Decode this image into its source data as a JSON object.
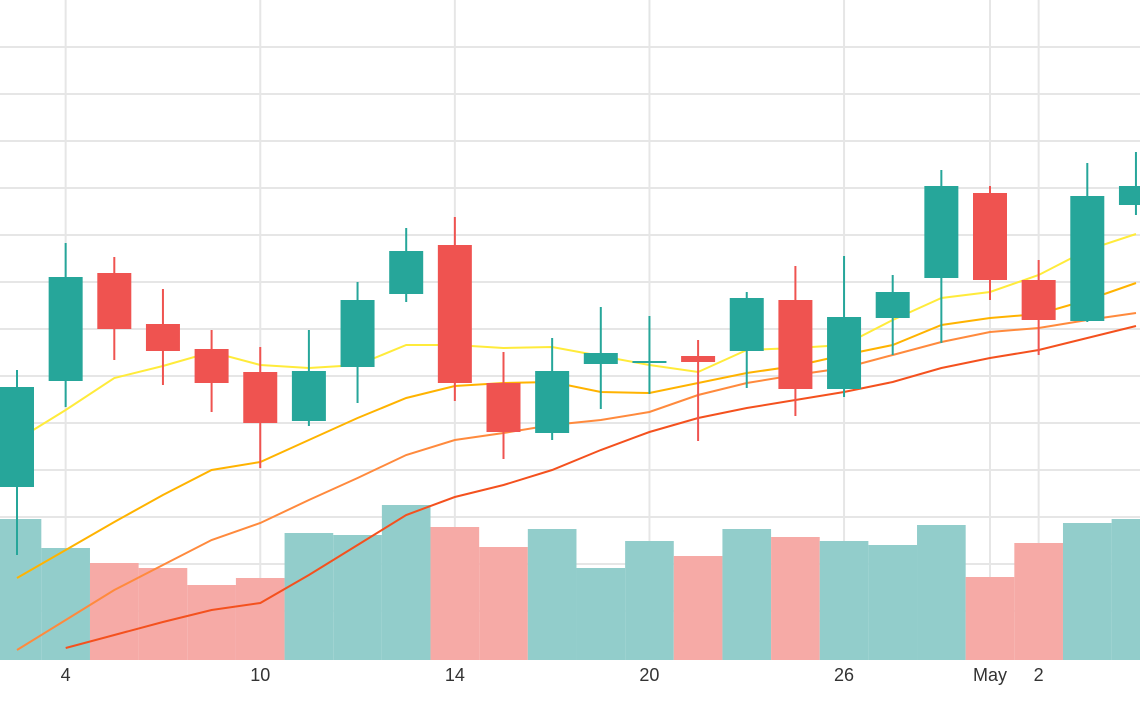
{
  "chart_data": {
    "type": "candlestick",
    "categories": [
      null,
      "4",
      null,
      null,
      null,
      "10",
      null,
      null,
      null,
      "14",
      null,
      null,
      null,
      "20",
      null,
      null,
      null,
      "26",
      null,
      null,
      "May",
      "2",
      null,
      null
    ],
    "open": [
      173,
      279,
      387,
      336,
      311,
      288,
      239,
      293,
      366,
      415,
      277,
      227,
      296,
      297,
      304,
      309,
      360,
      271,
      342,
      382,
      467,
      380,
      339,
      455
    ],
    "high": [
      290,
      417,
      403,
      371,
      330,
      313,
      330,
      378,
      432,
      443,
      308,
      322,
      353,
      344,
      320,
      368,
      394,
      404,
      385,
      490,
      474,
      400,
      497,
      508
    ],
    "low": [
      105,
      253,
      300,
      275,
      248,
      192,
      234,
      257,
      358,
      259,
      201,
      220,
      251,
      266,
      219,
      272,
      244,
      263,
      305,
      317,
      360,
      305,
      338,
      445
    ],
    "close": [
      273,
      383,
      331,
      309,
      277,
      237,
      289,
      360,
      409,
      277,
      228,
      289,
      307,
      299,
      298,
      362,
      271,
      343,
      368,
      474,
      380,
      340,
      464,
      474
    ],
    "volume": [
      141,
      112,
      97,
      92,
      75,
      82,
      127,
      125,
      155,
      133,
      113,
      131,
      92,
      119,
      104,
      131,
      123,
      119,
      115,
      135,
      83,
      117,
      137,
      141
    ],
    "up_color": "#26a69a",
    "down_color": "#ef5350",
    "volume_up_color": "#92cdcb",
    "volume_down_color": "#f6aaa6",
    "moving_averages": [
      {
        "color": "#ffeb3b",
        "values": [
          220,
          250,
          282,
          294,
          308,
          295,
          292,
          295,
          315,
          315,
          312,
          313,
          304,
          295,
          288,
          310,
          312,
          315,
          340,
          362,
          368,
          385,
          410,
          426
        ]
      },
      {
        "color": "#ffb300",
        "values": [
          82,
          110,
          138,
          165,
          190,
          198,
          220,
          242,
          262,
          274,
          277,
          278,
          268,
          267,
          277,
          287,
          294,
          305,
          315,
          335,
          342,
          346,
          360,
          377
        ]
      },
      {
        "color": "#ff8a3d",
        "values": [
          10,
          40,
          70,
          95,
          120,
          137,
          160,
          182,
          205,
          220,
          227,
          235,
          240,
          248,
          265,
          277,
          285,
          292,
          305,
          318,
          328,
          332,
          340,
          347
        ]
      },
      {
        "color": "#f4511e",
        "values": [
          null,
          12,
          25,
          38,
          50,
          57,
          85,
          115,
          145,
          163,
          175,
          190,
          210,
          228,
          242,
          252,
          260,
          268,
          278,
          292,
          302,
          310,
          322,
          334
        ]
      }
    ],
    "ylim": [
      0,
      660
    ],
    "yticks": [
      49,
      96,
      143,
      190,
      237,
      284,
      331,
      378,
      425,
      472,
      519,
      566,
      613
    ],
    "grid": true,
    "grid_color": "#e6e6e6"
  }
}
